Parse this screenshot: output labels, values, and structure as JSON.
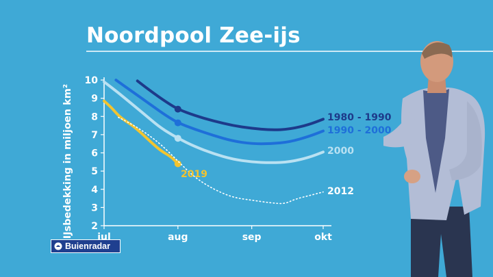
{
  "title": "Noordpool Zee-ijs",
  "logo": {
    "text": "Buienradar",
    "icon": "buienradar-logo-icon"
  },
  "colors": {
    "background": "#3fa9d6",
    "s1980": "#1d3a8a",
    "s1990": "#1e6fd9",
    "s2000": "#b9e1f2",
    "s2019": "#f2c430",
    "s2012": "#ffffff"
  },
  "chart_data": {
    "type": "line",
    "title": "Noordpool Zee-ijs",
    "xlabel": "",
    "ylabel": "IJsbedekking in miljoen km²",
    "ylim": [
      2,
      10
    ],
    "yticks": [
      2,
      3,
      4,
      5,
      6,
      7,
      8,
      9,
      10
    ],
    "xticks": [
      "jul",
      "aug",
      "sep",
      "okt"
    ],
    "x_unit": "days after 1 jul",
    "x_tick_values": [
      0,
      31,
      62,
      92
    ],
    "series": [
      {
        "name": "1980 - 1990",
        "color": "#1d3a8a",
        "style": "solid",
        "marker_x": 31,
        "x": [
          14,
          20,
          26,
          31,
          38,
          46,
          54,
          62,
          70,
          78,
          86,
          92
        ],
        "y": [
          9.95,
          9.35,
          8.8,
          8.4,
          8.05,
          7.75,
          7.5,
          7.35,
          7.25,
          7.3,
          7.55,
          7.85
        ]
      },
      {
        "name": "1990 - 2000",
        "color": "#1e6fd9",
        "style": "solid",
        "marker_x": 31,
        "x": [
          5,
          12,
          20,
          26,
          31,
          38,
          46,
          54,
          62,
          70,
          78,
          86,
          92
        ],
        "y": [
          10.0,
          9.35,
          8.6,
          8.05,
          7.65,
          7.3,
          6.95,
          6.65,
          6.5,
          6.5,
          6.6,
          6.9,
          7.2
        ]
      },
      {
        "name": "2000",
        "color": "#b9e1f2",
        "style": "solid",
        "marker_x": 31,
        "x": [
          0,
          6,
          12,
          18,
          24,
          31,
          38,
          46,
          54,
          62,
          70,
          78,
          86,
          92
        ],
        "y": [
          9.9,
          9.3,
          8.65,
          8.0,
          7.35,
          6.8,
          6.35,
          5.95,
          5.65,
          5.5,
          5.45,
          5.5,
          5.75,
          6.05
        ]
      },
      {
        "name": "2019",
        "color": "#f2c430",
        "style": "solid",
        "marker_x": 31,
        "x": [
          0,
          3,
          6,
          9,
          12,
          16,
          20,
          24,
          28,
          31
        ],
        "y": [
          8.85,
          8.5,
          8.05,
          7.75,
          7.5,
          7.05,
          6.55,
          6.1,
          5.8,
          5.4
        ]
      },
      {
        "name": "2012",
        "color": "#ffffff",
        "style": "dotted",
        "x": [
          6,
          12,
          18,
          24,
          31,
          38,
          46,
          54,
          62,
          70,
          76,
          80,
          86,
          92
        ],
        "y": [
          7.95,
          7.55,
          7.05,
          6.45,
          5.55,
          4.65,
          4.0,
          3.55,
          3.4,
          3.25,
          3.2,
          3.45,
          3.65,
          3.85
        ]
      }
    ]
  }
}
